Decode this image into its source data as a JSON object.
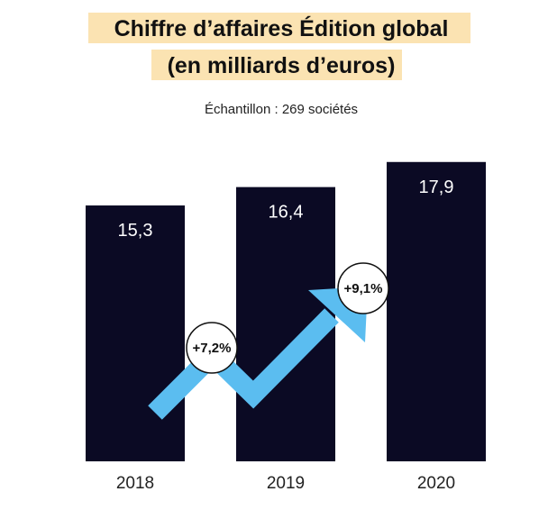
{
  "chart_data": {
    "type": "bar",
    "title": [
      "Chiffre d’affaires Édition global",
      "(en milliards d’euros)"
    ],
    "subtitle": "Échantillon : 269 sociétés",
    "categories": [
      "2018",
      "2019",
      "2020"
    ],
    "values": [
      15.3,
      16.4,
      17.9
    ],
    "value_labels": [
      "15,3",
      "16,4",
      "17,9"
    ],
    "color": "#0b0a24",
    "annotations": [
      "+7,2%",
      "+9,1%"
    ]
  }
}
